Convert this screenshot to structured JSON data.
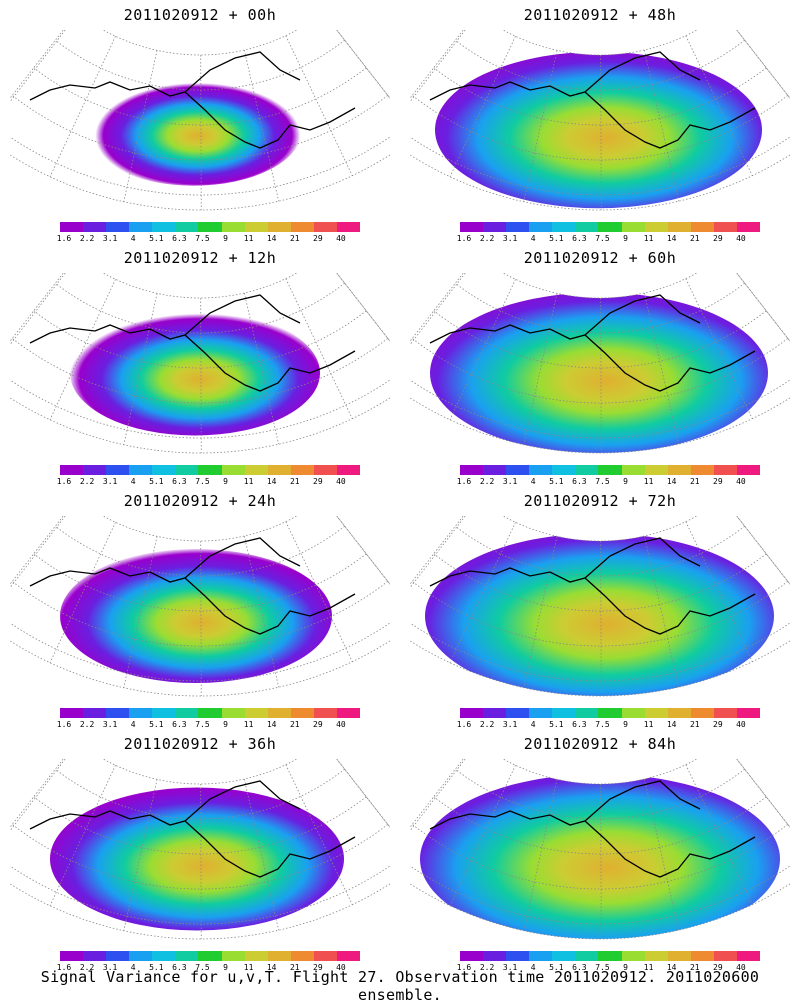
{
  "panels": [
    {
      "title": "2011020912 + 00h",
      "intensity": 0.55,
      "spread": 0.35
    },
    {
      "title": "2011020912 + 48h",
      "intensity": 0.7,
      "spread": 0.85
    },
    {
      "title": "2011020912 + 12h",
      "intensity": 0.6,
      "spread": 0.5
    },
    {
      "title": "2011020912 + 60h",
      "intensity": 0.72,
      "spread": 0.9
    },
    {
      "title": "2011020912 + 24h",
      "intensity": 0.62,
      "spread": 0.6
    },
    {
      "title": "2011020912 + 72h",
      "intensity": 0.75,
      "spread": 0.95
    },
    {
      "title": "2011020912 + 36h",
      "intensity": 0.65,
      "spread": 0.7
    },
    {
      "title": "2011020912 + 84h",
      "intensity": 0.78,
      "spread": 1.0
    }
  ],
  "colorbar": {
    "labels": [
      "1.6",
      "2.2",
      "3.1",
      "4",
      "5.1",
      "6.3",
      "7.5",
      "9",
      "11",
      "14",
      "21",
      "29",
      "40"
    ],
    "colors": [
      "#9900cc",
      "#6a1fe0",
      "#2f50f0",
      "#1aa0f0",
      "#10c0e0",
      "#10cca0",
      "#20cc30",
      "#99dd33",
      "#cccc33",
      "#e0b030",
      "#ee8a30",
      "#f05050",
      "#ee1a80"
    ]
  },
  "footer": "Signal Variance for u,v,T. Flight 27. Observation time 2011020912. 2011020600 ensemble."
}
